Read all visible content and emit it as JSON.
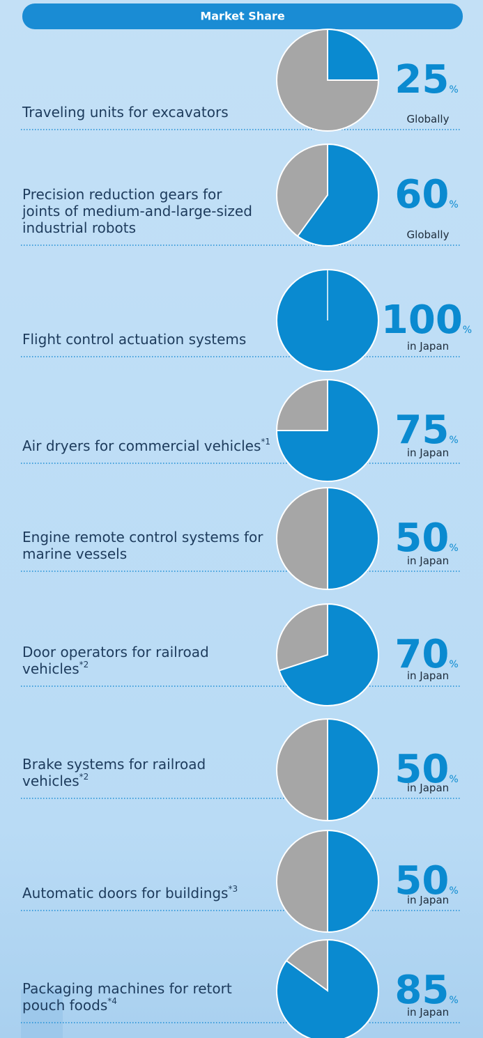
{
  "header": {
    "title": "Market Share"
  },
  "unit": "%",
  "items": [
    {
      "label": [
        "Traveling units for excavators"
      ],
      "value": 25,
      "scope": "Globally"
    },
    {
      "label": [
        "Precision reduction gears for",
        "joints of medium-and-large-sized",
        "industrial robots"
      ],
      "value": 60,
      "scope": "Globally"
    },
    {
      "label": [
        "Flight control actuation systems"
      ],
      "value": 100,
      "scope": "in Japan"
    },
    {
      "label": [
        "Air dryers for commercial vehicles"
      ],
      "footnote": "*1",
      "value": 75,
      "scope": "in Japan"
    },
    {
      "label": [
        "Engine remote control systems for",
        "marine vessels"
      ],
      "value": 50,
      "scope": "in Japan"
    },
    {
      "label": [
        "Door operators for railroad",
        "vehicles"
      ],
      "footnote": "*2",
      "value": 70,
      "scope": "in Japan"
    },
    {
      "label": [
        "Brake systems for railroad",
        "vehicles"
      ],
      "footnote": "*2",
      "value": 50,
      "scope": "in Japan"
    },
    {
      "label": [
        "Automatic doors for buildings"
      ],
      "footnote": "*3",
      "value": 50,
      "scope": "in Japan"
    },
    {
      "label": [
        "Packaging machines for retort",
        "pouch foods"
      ],
      "footnote": "*4",
      "value": 85,
      "scope": "in Japan"
    }
  ]
}
